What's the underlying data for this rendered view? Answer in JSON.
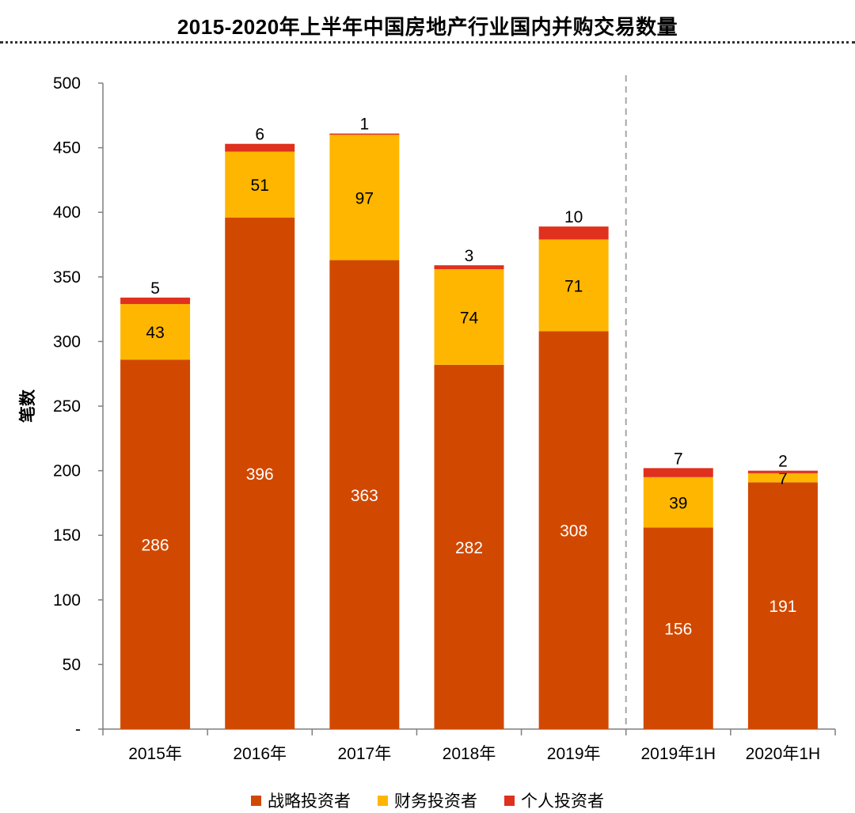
{
  "chart_data": {
    "type": "bar",
    "stacked": true,
    "title": "2015-2020年上半年中国房地产行业国内并购交易数量",
    "xlabel": "",
    "ylabel": "笔数",
    "ylim": [
      0,
      500
    ],
    "yticks": [
      0,
      50,
      100,
      150,
      200,
      250,
      300,
      350,
      400,
      450,
      500
    ],
    "ytick_labels": [
      "-",
      "50",
      "100",
      "150",
      "200",
      "250",
      "300",
      "350",
      "400",
      "450",
      "500"
    ],
    "categories": [
      "2015年",
      "2016年",
      "2017年",
      "2018年",
      "2019年",
      "2019年1H",
      "2020年1H"
    ],
    "separator_after_index": 4,
    "series": [
      {
        "name": "战略投资者",
        "color": "#D14900",
        "label_color": "#FFFFFF",
        "values": [
          286,
          396,
          363,
          282,
          308,
          156,
          191
        ]
      },
      {
        "name": "财务投资者",
        "color": "#FFB600",
        "label_color": "#000000",
        "values": [
          43,
          51,
          97,
          74,
          71,
          39,
          7
        ]
      },
      {
        "name": "个人投资者",
        "color": "#E0301E",
        "label_color": "#000000",
        "values": [
          5,
          6,
          1,
          3,
          10,
          7,
          2
        ]
      }
    ],
    "grid": false,
    "legend_position": "bottom"
  }
}
